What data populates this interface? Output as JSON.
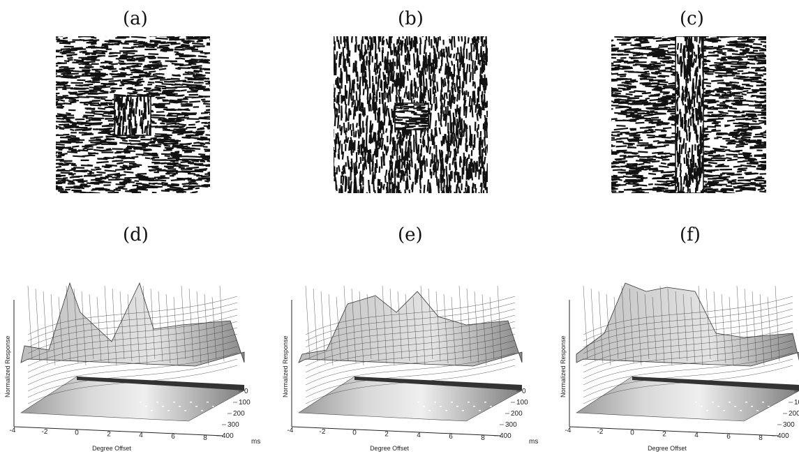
{
  "panels_top": [
    {
      "caption": "(a)",
      "background": "horizontal",
      "figure": "vertical",
      "figure_shape": "square"
    },
    {
      "caption": "(b)",
      "background": "vertical",
      "figure": "horizontal",
      "figure_shape": "square"
    },
    {
      "caption": "(c)",
      "background": "horizontal",
      "figure": "vertical",
      "figure_shape": "strip"
    }
  ],
  "panels_bottom": [
    {
      "caption": "(d)"
    },
    {
      "caption": "(e)"
    },
    {
      "caption": "(f)"
    }
  ],
  "axes": {
    "xlabel": "Degree Offset",
    "ylabel": "Normalized Response",
    "x_ticks": [
      "-4",
      "-2",
      "0",
      "2",
      "4",
      "6",
      "8"
    ],
    "t_ticks": [
      "0",
      "100",
      "200",
      "300",
      "400"
    ],
    "t_unit": "ms"
  },
  "colors": {
    "ink": "#111111",
    "surface": "#cfcfcf",
    "mesh": "#333333"
  }
}
